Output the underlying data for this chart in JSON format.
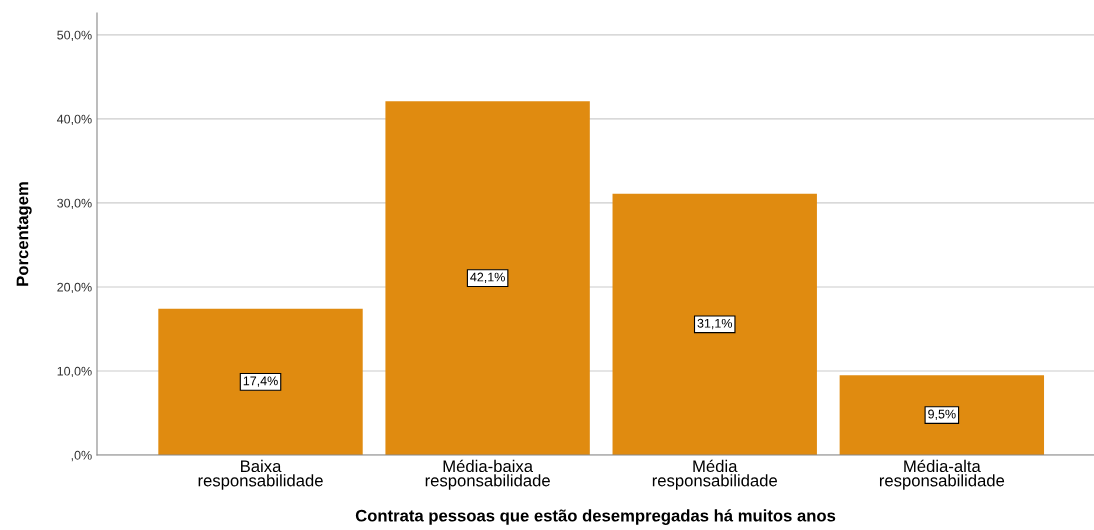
{
  "chart_data": {
    "type": "bar",
    "xlabel": "Contrata pessoas que estão desempregadas há muitos anos",
    "ylabel": "Porcentagem",
    "categories": [
      "Baixa\nresponsabilidade",
      "Média-baixa\nresponsabilidade",
      "Média\nresponsabilidade",
      "Média-alta\nresponsabilidade"
    ],
    "values": [
      17.4,
      42.1,
      31.1,
      9.5
    ],
    "color": "#e08b10",
    "value_labels": [
      "17,4%",
      "42,1%",
      "31,1%",
      "9,5%"
    ],
    "ylim": [
      0,
      52.6
    ],
    "yticks": [
      {
        "value": 0,
        "label": ",0%"
      },
      {
        "value": 10,
        "label": "10,0%"
      },
      {
        "value": 20,
        "label": "20,0%"
      },
      {
        "value": 30,
        "label": "30,0%"
      },
      {
        "value": 40,
        "label": "40,0%"
      },
      {
        "value": 50,
        "label": "50,0%"
      }
    ],
    "grid": "y"
  }
}
